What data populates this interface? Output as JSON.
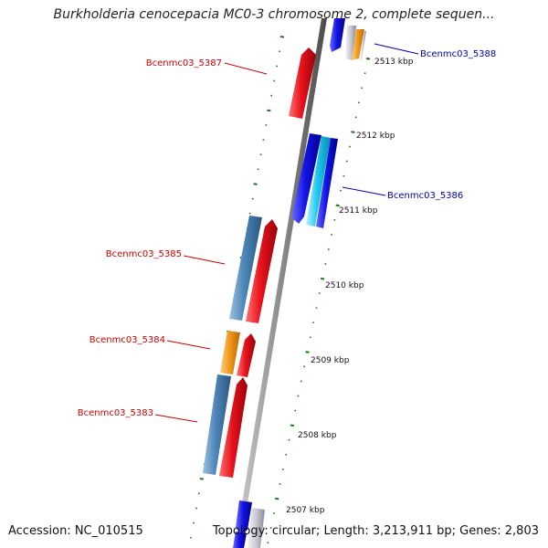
{
  "title": "Burkholderia cenocepacia MC0-3 chromosome 2, complete sequen...",
  "footer": {
    "accession": "Accession: NC_010515",
    "summary": "Topology: circular; Length: 3,213,911 bp; Genes: 2,803"
  },
  "colors": {
    "backbone": "#8c8c8c",
    "tick": "#1f7a1f",
    "gene_red": "#e8141e",
    "gene_steelblue": "#4d86b8",
    "gene_orange": "#f29a1c",
    "gene_blue": "#1414e6",
    "gene_cyan": "#1ec8f0",
    "gene_grey": "#c9c9d4",
    "label_red": "#cc0000",
    "label_blue": "#0000b4"
  },
  "scale_labels": [
    "2513 kbp",
    "2512 kbp",
    "2511 kbp",
    "2510 kbp",
    "2509 kbp",
    "2508 kbp",
    "2507 kbp"
  ],
  "gene_labels": [
    {
      "text": "Bcenmc03_5387",
      "color": "red"
    },
    {
      "text": "Bcenmc03_5388",
      "color": "blue"
    },
    {
      "text": "Bcenmc03_5386",
      "color": "blue"
    },
    {
      "text": "Bcenmc03_5385",
      "color": "red"
    },
    {
      "text": "Bcenmc03_5384",
      "color": "red"
    },
    {
      "text": "Bcenmc03_5383",
      "color": "red"
    }
  ],
  "features": [
    {
      "name": "Bcenmc03_5388",
      "color": "gene_orange",
      "strand": "+"
    },
    {
      "name": "Bcenmc03_5387",
      "color": "gene_red",
      "strand": "-"
    },
    {
      "name": "Bcenmc03_5386",
      "color": "gene_blue",
      "strand": "+"
    },
    {
      "name": "Bcenmc03_5385",
      "color": "gene_steelblue",
      "strand": "-"
    },
    {
      "name": "Bcenmc03_5384",
      "color": "gene_orange",
      "strand": "-"
    },
    {
      "name": "Bcenmc03_5383",
      "color": "gene_steelblue",
      "strand": "-"
    }
  ]
}
